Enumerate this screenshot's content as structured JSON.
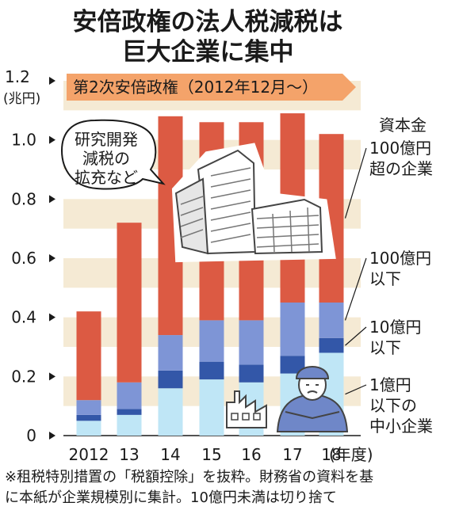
{
  "title_lines": [
    "安倍政権の法人税減税は",
    "巨大企業に集中"
  ],
  "unit_line1": "1.2",
  "unit_line2": "(兆円)",
  "period_label": "第2次安倍政権（2012年12月～）",
  "bubble_lines": [
    "研究開発",
    "減税の",
    "拡充など"
  ],
  "legend_title": "資本金",
  "x_unit": "(年度)",
  "footnote_lines": [
    "※租税特別措置の「税額控除」を抜粋。財務省の資料を基",
    "に本紙が企業規模別に集計。10億円未満は切り捨て"
  ],
  "colors": {
    "band": "#f5ead4",
    "period_arrow": "#f4a36a",
    "s100oku_over": "#dc5a43",
    "s100oku_under": "#7e95d6",
    "s10oku_under": "#3357a8",
    "s1oku_under": "#bfe6f6"
  },
  "chart_data": {
    "type": "bar",
    "stacked": true,
    "categories": [
      "2012",
      "13",
      "14",
      "15",
      "16",
      "17",
      "18"
    ],
    "x_tick_labels": [
      "2012",
      "13",
      "14",
      "15",
      "16",
      "17",
      "18"
    ],
    "y_ticks": [
      "0",
      "0.2",
      "0.4",
      "0.6",
      "0.8",
      "1.0"
    ],
    "ylim": [
      0,
      1.2
    ],
    "series": [
      {
        "name": "1億円以下の中小企業",
        "label_lines": [
          "1億円",
          "以下の",
          "中小企業"
        ],
        "color_key": "s1oku_under",
        "values": [
          0.05,
          0.07,
          0.16,
          0.19,
          0.18,
          0.21,
          0.28
        ]
      },
      {
        "name": "10億円以下",
        "label_lines": [
          "10億円",
          "以下"
        ],
        "color_key": "s10oku_under",
        "values": [
          0.02,
          0.02,
          0.06,
          0.06,
          0.06,
          0.06,
          0.05
        ]
      },
      {
        "name": "100億円以下",
        "label_lines": [
          "100億円",
          "以下"
        ],
        "color_key": "s100oku_under",
        "values": [
          0.05,
          0.09,
          0.12,
          0.14,
          0.15,
          0.18,
          0.12
        ]
      },
      {
        "name": "100億円超の企業",
        "label_lines": [
          "100億円",
          "超の企業"
        ],
        "color_key": "s100oku_over",
        "values": [
          0.3,
          0.54,
          0.74,
          0.67,
          0.67,
          0.64,
          0.57
        ]
      }
    ]
  }
}
